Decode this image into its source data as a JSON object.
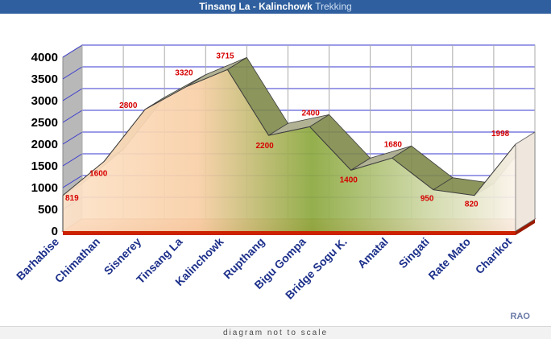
{
  "title": {
    "main": "Tinsang La - Kalinchowk",
    "accent": "Trekking"
  },
  "credit": "RAO",
  "footer_note": "diagram not to scale",
  "chart_data": {
    "type": "area",
    "title": "Tinsang La - Kalinchowk Trekking",
    "categories": [
      "Barhabise",
      "Chimathan",
      "Sisnerey",
      "Tinsang La",
      "Kalinchowk",
      "Rupthang",
      "Bigu Gompa",
      "Bridge Sogu K.",
      "Amatal",
      "Singati",
      "Rate Mato",
      "Charikot"
    ],
    "series": [
      {
        "values": [
          819,
          1600,
          2800,
          3320,
          3715,
          2200,
          2400,
          1400,
          1680,
          950,
          820,
          1998
        ]
      }
    ],
    "ylim": [
      0,
      4000
    ],
    "yticks": [
      0,
      500,
      1000,
      1500,
      2000,
      2500,
      3000,
      3500,
      4000
    ],
    "xlabel": "",
    "ylabel": "",
    "grid": true,
    "colors": {
      "grid": "#3a3ad0",
      "floor": "#cc2200",
      "label": "#d60000",
      "axis_text": "#1c2f8a",
      "wall": "#b8b8b8"
    }
  }
}
